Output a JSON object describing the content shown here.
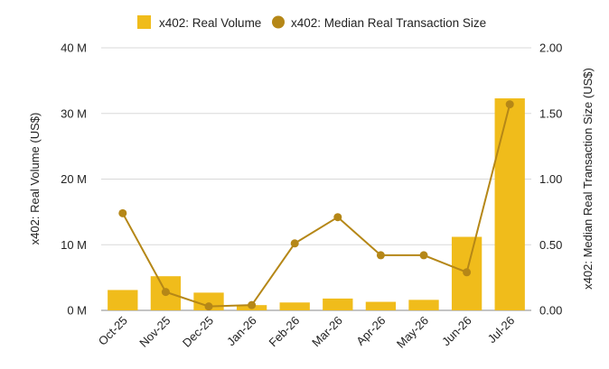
{
  "chart_data": {
    "type": "bar",
    "categories": [
      "Oct-25",
      "Nov-25",
      "Dec-25",
      "Jan-26",
      "Feb-26",
      "Mar-26",
      "Apr-26",
      "May-26",
      "Jun-26",
      "Jul-26"
    ],
    "series": [
      {
        "name": "x402: Real Volume",
        "type": "bar",
        "axis": "left",
        "values": [
          3.1,
          5.2,
          2.7,
          0.8,
          1.2,
          1.8,
          1.3,
          1.6,
          11.2,
          32.3
        ]
      },
      {
        "name": "x402: Median Real Transaction Size",
        "type": "line",
        "axis": "right",
        "values": [
          0.74,
          0.14,
          0.03,
          0.04,
          0.51,
          0.71,
          0.42,
          0.42,
          0.29,
          1.57
        ]
      }
    ],
    "ylabel": "x402: Real Volume (US$)",
    "y2label": "x402: Median Real Transaction Size (US$)",
    "ylim": [
      0,
      40
    ],
    "y2lim": [
      0,
      2
    ],
    "yticks": [
      "0 M",
      "10 M",
      "20 M",
      "30 M",
      "40 M"
    ],
    "y2ticks": [
      "0.00",
      "0.50",
      "1.00",
      "1.50",
      "2.00"
    ],
    "legend_position": "top",
    "grid": true,
    "colors": {
      "bar": "#F0BC1B",
      "line": "#B58717",
      "grid": "#d9d9d9"
    }
  }
}
